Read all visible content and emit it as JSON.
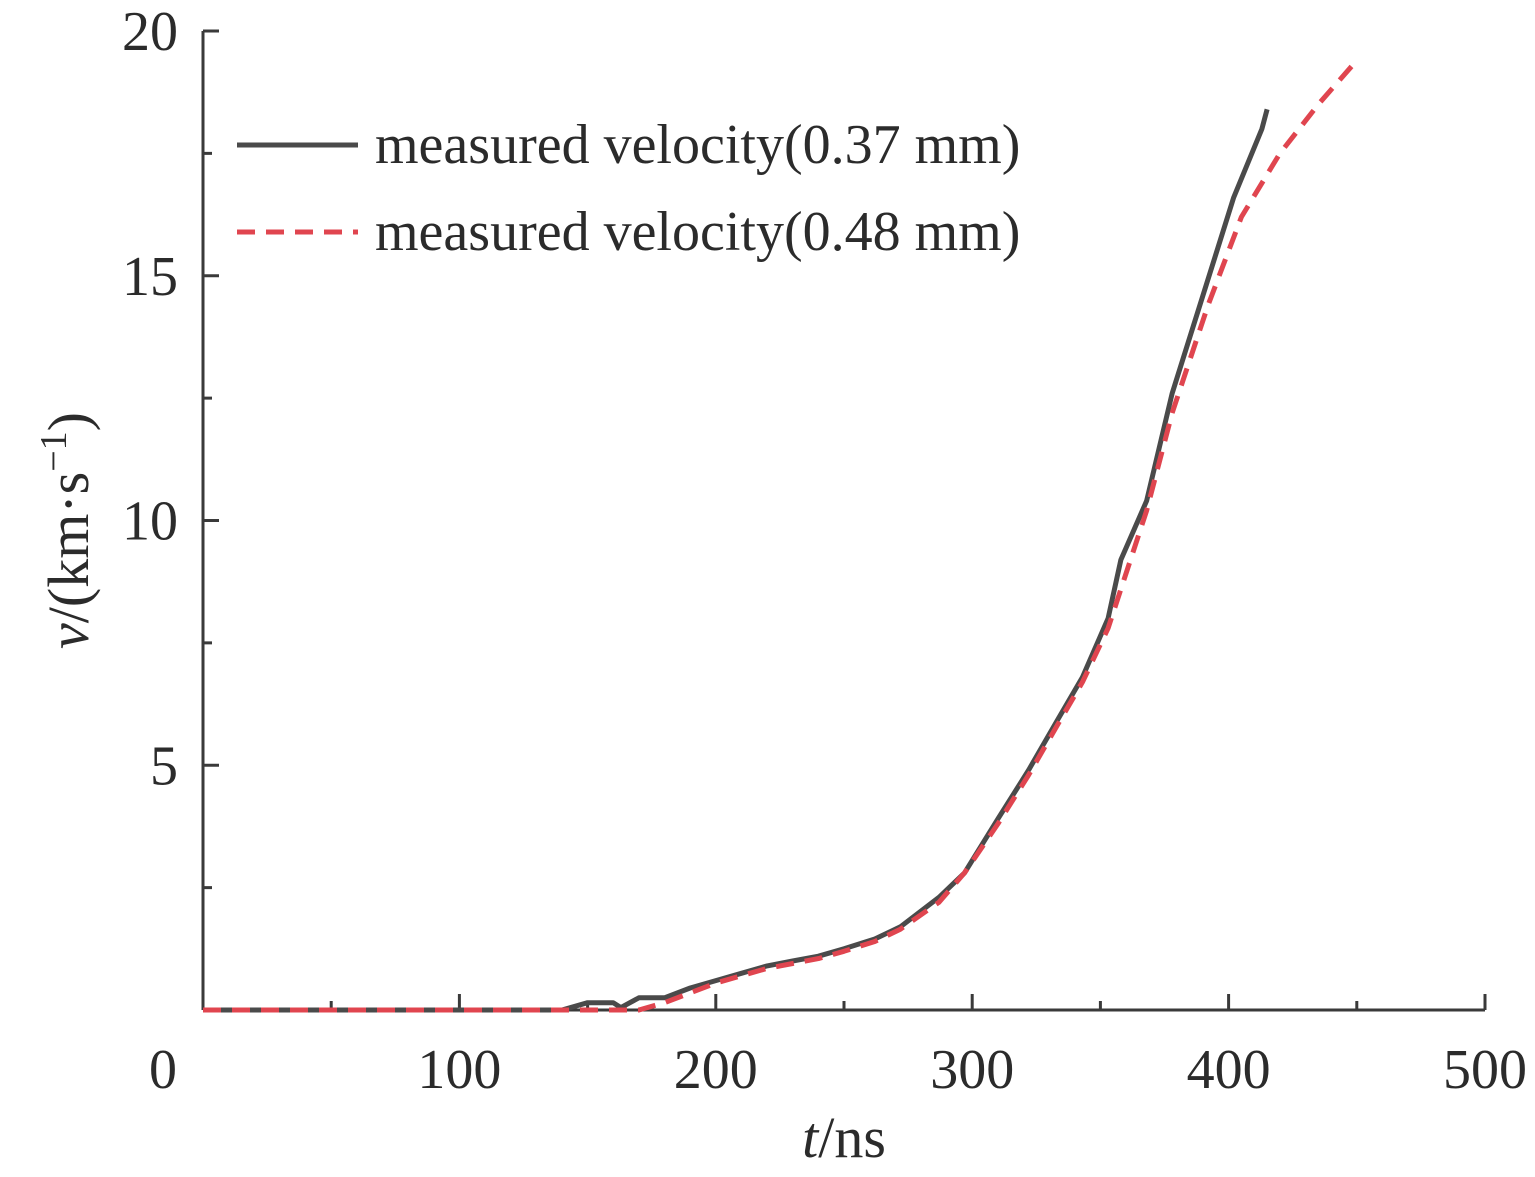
{
  "chart_data": {
    "type": "line",
    "xlabel_italic": "t",
    "xlabel_rest": "/ns",
    "ylabel_italic": "v",
    "ylabel_rest": "/(km·s",
    "ylabel_sup": "−1",
    "ylabel_close": ")",
    "xlim": [
      0,
      500
    ],
    "ylim": [
      0,
      20
    ],
    "x_ticks": [
      0,
      100,
      200,
      300,
      400,
      500
    ],
    "x_tick_labels": [
      "0",
      "100",
      "200",
      "300",
      "400",
      "500"
    ],
    "x_minor_ticks": [
      50,
      150,
      250,
      350,
      450
    ],
    "y_ticks": [
      5,
      10,
      15,
      20
    ],
    "y_tick_labels": [
      "5",
      "10",
      "15",
      "20"
    ],
    "y_minor_ticks": [
      2.5,
      7.5,
      12.5,
      17.5
    ],
    "grid": false,
    "legend_position": "top-left",
    "series": [
      {
        "name": "measured velocity(0.37 mm)",
        "color": "#4a4a4a",
        "dash": "solid",
        "x": [
          0,
          140,
          150,
          160,
          163,
          170,
          180,
          190,
          200,
          210,
          220,
          230,
          240,
          250,
          262,
          272,
          287,
          297,
          310,
          322,
          333,
          343,
          353,
          358,
          368,
          378,
          390,
          402,
          413,
          415
        ],
        "y": [
          0,
          0,
          0.15,
          0.15,
          0.05,
          0.25,
          0.25,
          0.45,
          0.6,
          0.75,
          0.9,
          1.0,
          1.1,
          1.25,
          1.45,
          1.7,
          2.3,
          2.8,
          3.9,
          4.9,
          5.9,
          6.8,
          8.0,
          9.2,
          10.4,
          12.6,
          14.6,
          16.6,
          18.0,
          18.4
        ]
      },
      {
        "name": "measured velocity(0.48 mm)",
        "color": "#e0454f",
        "dash": "dashed",
        "x": [
          0,
          140,
          150,
          160,
          170,
          180,
          190,
          200,
          210,
          220,
          230,
          240,
          250,
          262,
          272,
          287,
          297,
          310,
          322,
          333,
          343,
          353,
          368,
          378,
          392,
          405,
          420,
          435,
          450
        ],
        "y": [
          0,
          0,
          0,
          0,
          0,
          0.15,
          0.35,
          0.55,
          0.7,
          0.85,
          0.95,
          1.05,
          1.2,
          1.4,
          1.65,
          2.2,
          2.8,
          3.8,
          4.8,
          5.8,
          6.7,
          7.8,
          10.2,
          12.2,
          14.4,
          16.2,
          17.5,
          18.5,
          19.4
        ]
      }
    ]
  }
}
